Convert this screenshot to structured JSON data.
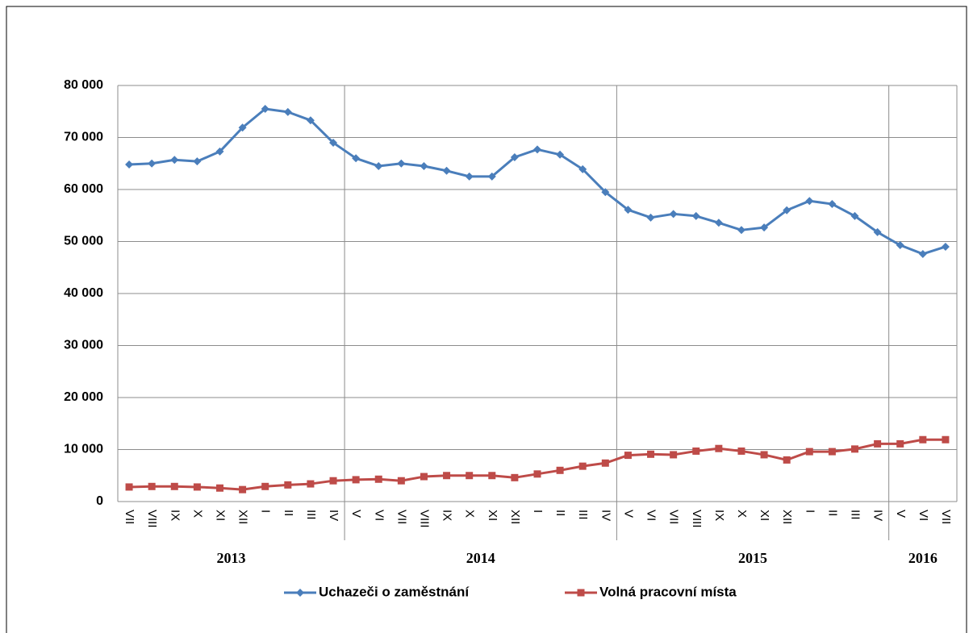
{
  "chart_data": {
    "type": "line",
    "groups": [
      {
        "name": "2013",
        "categories": [
          "VII",
          "VIII",
          "IX",
          "X",
          "XI",
          "XII",
          "I",
          "II",
          "III",
          "IV"
        ]
      },
      {
        "name": "2014",
        "categories": [
          "V",
          "VI",
          "VII",
          "VIII",
          "IX",
          "X",
          "XI",
          "XII",
          "I",
          "II",
          "III",
          "IV"
        ]
      },
      {
        "name": "2015",
        "categories": [
          "V",
          "VI",
          "VII",
          "VIII",
          "IX",
          "X",
          "XI",
          "XII",
          "I",
          "II",
          "III",
          "IV"
        ]
      },
      {
        "name": "2016",
        "categories": [
          "V",
          "VI",
          "VII"
        ]
      }
    ],
    "series": [
      {
        "name": "Uchazeči o zaměstnání",
        "color": "#4a7ebb",
        "marker": "diamond",
        "values": [
          64800,
          65000,
          65700,
          65400,
          67300,
          71900,
          75500,
          74900,
          73300,
          69000,
          66000,
          64500,
          65000,
          64500,
          63600,
          62500,
          62500,
          66200,
          67700,
          66700,
          63900,
          59500,
          56100,
          54600,
          55300,
          54900,
          53600,
          52200,
          52700,
          56000,
          57800,
          57200,
          54900,
          51800,
          49300,
          47600,
          49000
        ]
      },
      {
        "name": "Volná pracovní místa",
        "color": "#be4b48",
        "marker": "square",
        "values": [
          2800,
          2900,
          2900,
          2800,
          2600,
          2300,
          2900,
          3200,
          3400,
          4000,
          4200,
          4300,
          4000,
          4800,
          5000,
          5000,
          5000,
          4600,
          5300,
          6000,
          6800,
          7400,
          8900,
          9100,
          9000,
          9700,
          10200,
          9700,
          9000,
          8000,
          9600,
          9600,
          10100,
          11100,
          11100,
          11900,
          11900
        ]
      }
    ],
    "ylim": [
      0,
      80000
    ],
    "yticks": [
      0,
      {
        "value": 10000,
        "label": "10 000"
      },
      {
        "value": 20000,
        "label": "20 000"
      },
      {
        "value": 30000,
        "label": "30 000"
      },
      {
        "value": 40000,
        "label": "40 000"
      },
      {
        "value": 50000,
        "label": "50 000"
      },
      {
        "value": 60000,
        "label": "60 000"
      },
      {
        "value": 70000,
        "label": "70 000"
      },
      {
        "value": 80000,
        "label": "80 000"
      }
    ],
    "grid": true,
    "legend": "bottom"
  }
}
